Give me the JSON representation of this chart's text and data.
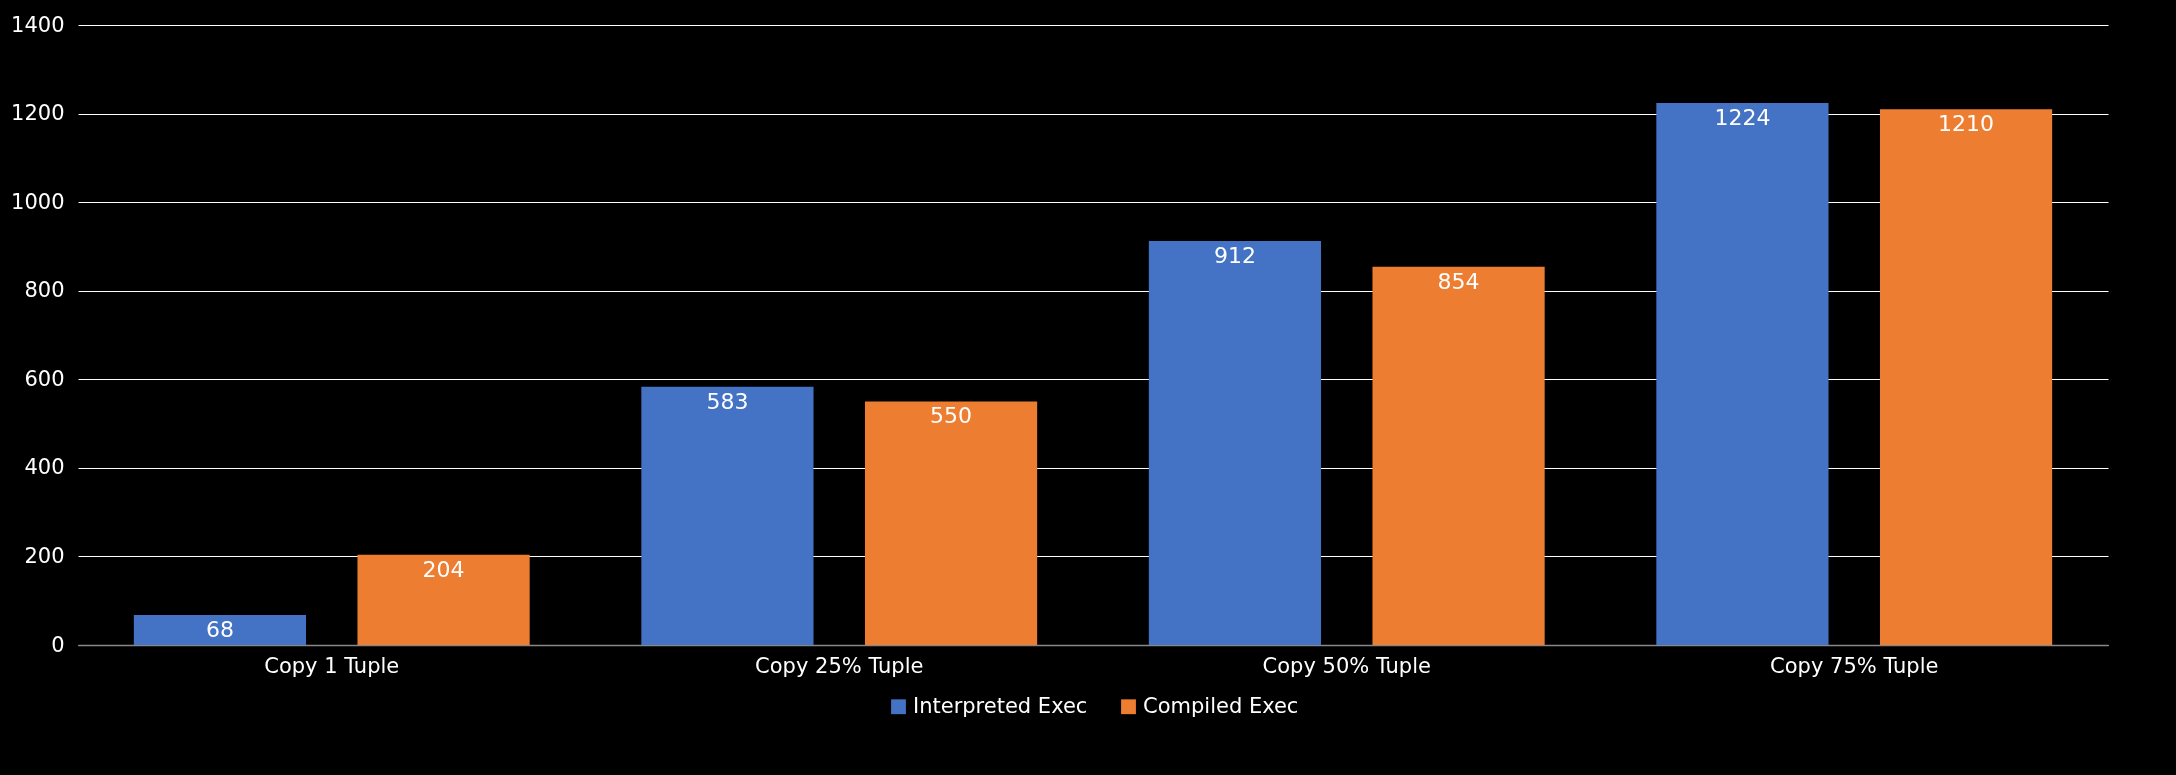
{
  "chart_data": {
    "type": "bar",
    "categories": [
      "Copy 1 Tuple",
      "Copy 25% Tuple",
      "Copy 50% Tuple",
      "Copy 75% Tuple"
    ],
    "series": [
      {
        "name": "Interpreted Exec",
        "color": "#4472c4",
        "values": [
          68,
          583,
          912,
          1224
        ]
      },
      {
        "name": "Compiled Exec",
        "color": "#ed7d31",
        "values": [
          204,
          550,
          854,
          1210
        ]
      }
    ],
    "ylim": [
      0,
      1400
    ],
    "yticks": [
      0,
      200,
      400,
      600,
      800,
      1000,
      1200,
      1400
    ],
    "grid": "y",
    "legend": "bottom",
    "data_labels": true
  }
}
